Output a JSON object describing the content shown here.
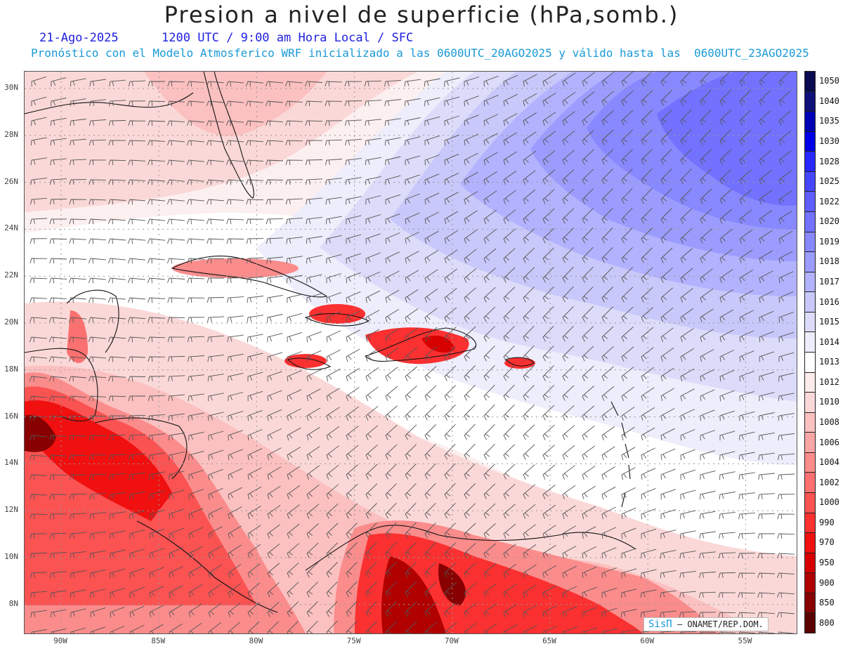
{
  "title": "Presion a nivel de superficie (hPa,somb.)",
  "date": "21-Ago-2025",
  "time": "1200 UTC / 9:00 am Hora Local / SFC",
  "forecast": "Pronóstico con el Modelo Atmosferico WRF inicializado a las 0600UTC_20AGO2025 y válido hasta las  0600UTC_23AGO2025",
  "lat_labels": [
    "30N",
    "28N",
    "26N",
    "24N",
    "22N",
    "20N",
    "18N",
    "16N",
    "14N",
    "12N",
    "10N",
    "8N"
  ],
  "lon_labels": [
    "90W",
    "85W",
    "80W",
    "75W",
    "70W",
    "65W",
    "60W",
    "55W"
  ],
  "colorbar": [
    {
      "value": "1050",
      "color": "#0a0a4f"
    },
    {
      "value": "1040",
      "color": "#10107a"
    },
    {
      "value": "1035",
      "color": "#0000b4"
    },
    {
      "value": "1030",
      "color": "#0000e8"
    },
    {
      "value": "1028",
      "color": "#2828ff"
    },
    {
      "value": "1025",
      "color": "#4646ff"
    },
    {
      "value": "1022",
      "color": "#5e5eff"
    },
    {
      "value": "1020",
      "color": "#7272ff"
    },
    {
      "value": "1019",
      "color": "#8888ff"
    },
    {
      "value": "1018",
      "color": "#9c9cff"
    },
    {
      "value": "1017",
      "color": "#b2b2ff"
    },
    {
      "value": "1016",
      "color": "#c8c8fa"
    },
    {
      "value": "1015",
      "color": "#dcdcfa"
    },
    {
      "value": "1014",
      "color": "#ededfb"
    },
    {
      "value": "1013",
      "color": "#ffffff"
    },
    {
      "value": "1012",
      "color": "#fbebeb"
    },
    {
      "value": "1010",
      "color": "#fbd8d8"
    },
    {
      "value": "1008",
      "color": "#fbc0c0"
    },
    {
      "value": "1006",
      "color": "#fba6a6"
    },
    {
      "value": "1004",
      "color": "#fb8c8c"
    },
    {
      "value": "1002",
      "color": "#fb7070"
    },
    {
      "value": "1000",
      "color": "#fb5252"
    },
    {
      "value": "990",
      "color": "#fb3030"
    },
    {
      "value": "970",
      "color": "#f01010"
    },
    {
      "value": "950",
      "color": "#d60000"
    },
    {
      "value": "900",
      "color": "#b00000"
    },
    {
      "value": "850",
      "color": "#880000"
    },
    {
      "value": "800",
      "color": "#5a0000"
    }
  ],
  "credit": {
    "sis": "SisΠ",
    "org": "– ONAMET/REP.DOM."
  },
  "colors": {
    "high": "#7272ff",
    "low": "#d60000",
    "neutral": "#ffffff"
  },
  "icons": [
    "wind-barb-icon"
  ]
}
